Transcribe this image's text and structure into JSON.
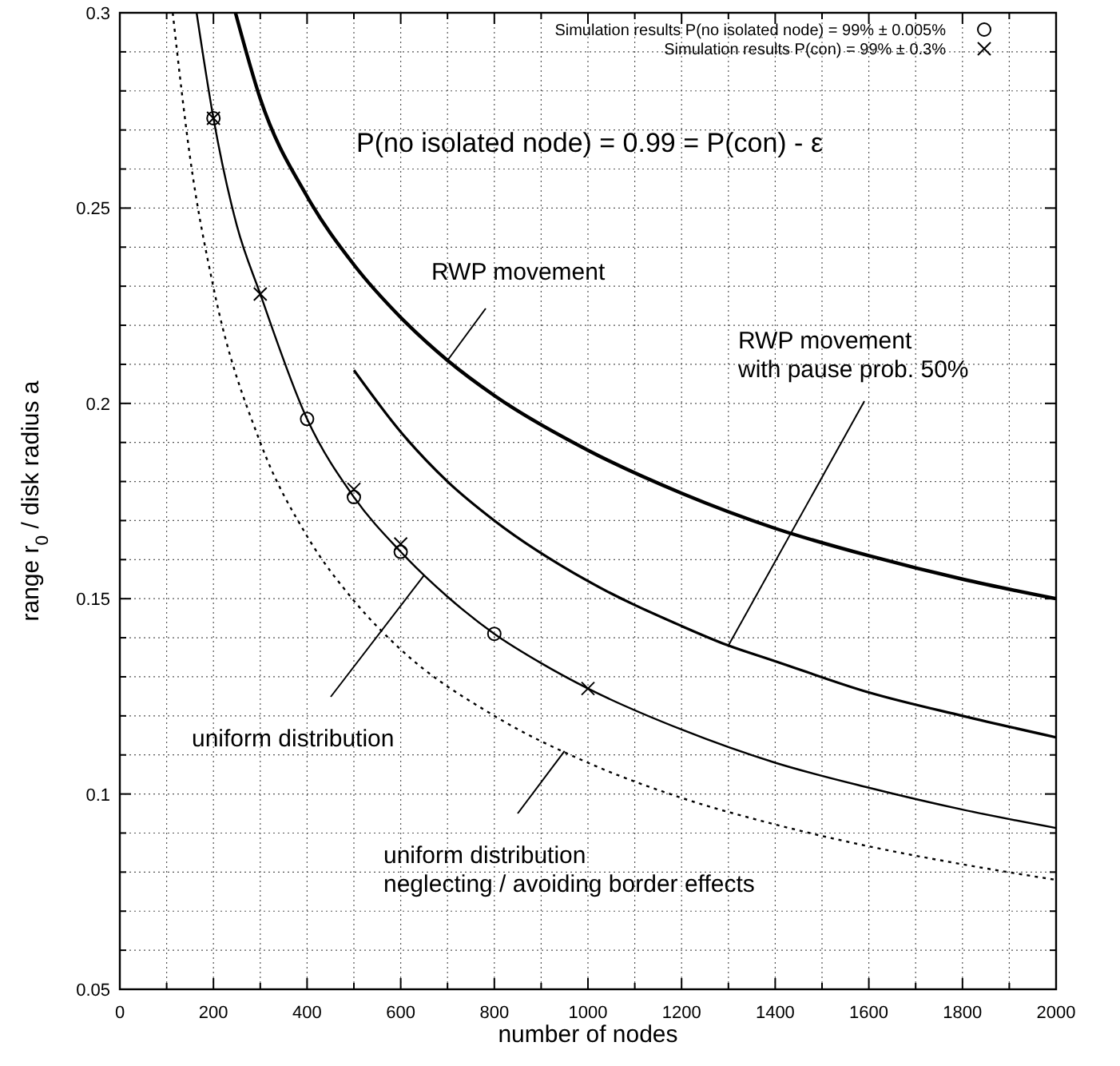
{
  "chart_data": {
    "type": "line",
    "title": "P(no isolated node) = 0.99 = P(con) - ε",
    "xlabel": "number of nodes",
    "ylabel": "range r$_{0}$ / disk radius a",
    "xlim": [
      0,
      2000
    ],
    "ylim": [
      0.05,
      0.3
    ],
    "xticks": [
      0,
      {
        "value": 100,
        "label": null
      },
      200,
      {
        "value": 300,
        "label": null
      },
      400,
      {
        "value": 500,
        "label": null
      },
      600,
      {
        "value": 700,
        "label": null
      },
      800,
      {
        "value": 900,
        "label": null
      },
      1000,
      {
        "value": 1100,
        "label": null
      },
      1200,
      {
        "value": 1300,
        "label": null
      },
      1400,
      {
        "value": 1500,
        "label": null
      },
      1600,
      {
        "value": 1700,
        "label": null
      },
      1800,
      {
        "value": 1900,
        "label": null
      },
      2000
    ],
    "yticks": [
      0.05,
      {
        "value": 0.06,
        "label": null
      },
      {
        "value": 0.07,
        "label": null
      },
      {
        "value": 0.08,
        "label": null
      },
      {
        "value": 0.09,
        "label": null
      },
      0.1,
      {
        "value": 0.11,
        "label": null
      },
      {
        "value": 0.12,
        "label": null
      },
      {
        "value": 0.13,
        "label": null
      },
      {
        "value": 0.14,
        "label": null
      },
      0.15,
      {
        "value": 0.16,
        "label": null
      },
      {
        "value": 0.17,
        "label": null
      },
      {
        "value": 0.18,
        "label": null
      },
      {
        "value": 0.19,
        "label": null
      },
      0.2,
      {
        "value": 0.21,
        "label": null
      },
      {
        "value": 0.22,
        "label": null
      },
      {
        "value": 0.23,
        "label": null
      },
      {
        "value": 0.24,
        "label": null
      },
      0.25,
      {
        "value": 0.26,
        "label": null
      },
      {
        "value": 0.27,
        "label": null
      },
      {
        "value": 0.28,
        "label": null
      },
      {
        "value": 0.29,
        "label": null
      },
      0.3
    ],
    "grid": true,
    "legend": "top right",
    "annotations": [
      {
        "text": "uniform distribution",
        "x": 650,
        "y": 0.156
      },
      {
        "text": "RWP movement",
        "x": 700,
        "y": 0.211
      },
      {
        "text": "RWP movement\nwith pause prob. 50%",
        "x": 1300,
        "y": 0.138
      },
      {
        "text": "uniform distribution\nneglecting / avoiding border effects",
        "x": 950,
        "y": 0.111
      }
    ],
    "series": [
      {
        "color": "#000000",
        "line_style": "solid",
        "x": [
          164,
          200,
          250,
          300,
          400,
          500,
          600,
          700,
          800,
          900,
          1000,
          1200,
          1400,
          1600,
          1800,
          2000
        ],
        "values": [
          0.3,
          0.273,
          0.2455,
          0.228,
          0.196,
          0.176,
          0.162,
          0.1505,
          0.141,
          0.1335,
          0.127,
          0.1165,
          0.108,
          0.1016,
          0.096,
          0.0913
        ]
      },
      {
        "color": "#000000",
        "line_style": "solid",
        "x": [
          247,
          300,
          400,
          500,
          600,
          700,
          800,
          1000,
          1200,
          1400,
          1600,
          1800,
          2000
        ],
        "values": [
          0.3,
          0.278,
          0.253,
          0.2355,
          0.222,
          0.211,
          0.202,
          0.188,
          0.177,
          0.168,
          0.161,
          0.155,
          0.15
        ]
      },
      {
        "color": "#000000",
        "line_style": "solid",
        "x": [
          500,
          600,
          700,
          800,
          1000,
          1200,
          1300,
          1400,
          1600,
          1800,
          2000
        ],
        "values": [
          0.2085,
          0.1927,
          0.18,
          0.17,
          0.1545,
          0.143,
          0.138,
          0.134,
          0.126,
          0.12,
          0.1145
        ]
      },
      {
        "color": "#000000",
        "line_style": "dotted",
        "x": [
          113,
          150,
          200,
          300,
          400,
          500,
          600,
          800,
          1000,
          1200,
          1400,
          1600,
          1800,
          2000
        ],
        "values": [
          0.3,
          0.263,
          0.2297,
          0.19,
          0.166,
          0.1495,
          0.137,
          0.12,
          0.108,
          0.099,
          0.0922,
          0.0866,
          0.082,
          0.078
        ]
      },
      {
        "type": "scatter",
        "name": "Simulation results P(no isolated node) = 99% ± 0.005%",
        "color": "#000000",
        "marker": "circle",
        "x": [
          200,
          400,
          500,
          600,
          800
        ],
        "values": [
          0.273,
          0.196,
          0.176,
          0.162,
          0.141
        ]
      },
      {
        "type": "scatter",
        "name": "Simulation results P(con) = 99% ± 0.3%",
        "color": "#000000",
        "marker": "cross",
        "x": [
          200,
          300,
          500,
          600,
          1000
        ],
        "values": [
          0.273,
          0.228,
          0.178,
          0.164,
          0.127
        ]
      }
    ]
  }
}
